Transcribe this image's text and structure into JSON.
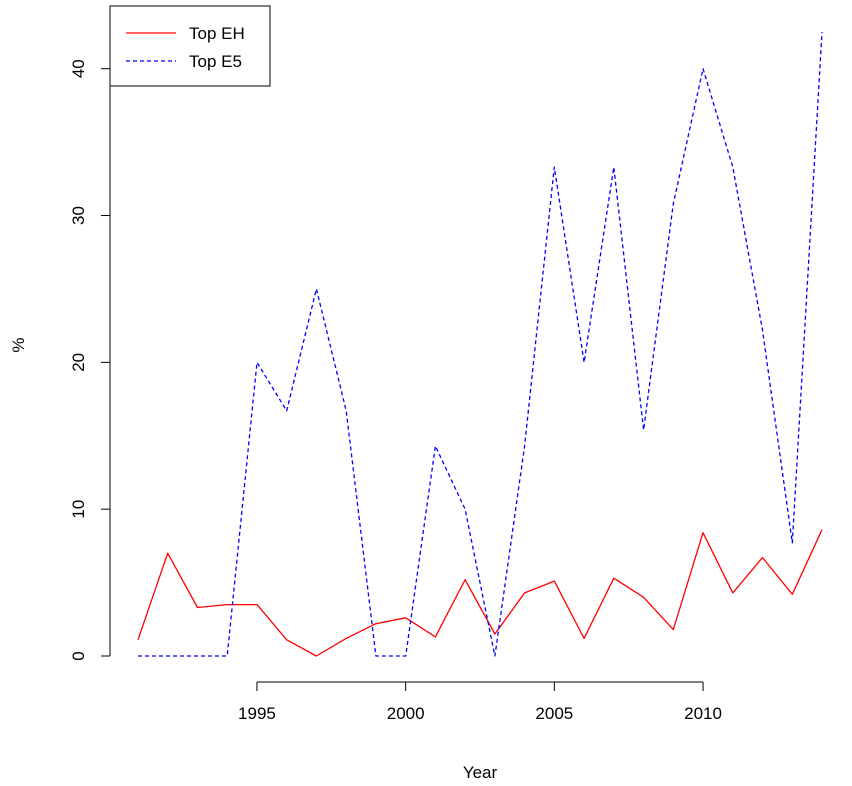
{
  "chart_data": {
    "type": "line",
    "title": "",
    "xlabel": "Year",
    "ylabel": "%",
    "xlim": [
      1991,
      2014
    ],
    "ylim": [
      0,
      42.5
    ],
    "x_ticks": [
      1995,
      2000,
      2005,
      2010
    ],
    "y_ticks": [
      0,
      10,
      20,
      30,
      40
    ],
    "grid": false,
    "box": false,
    "legend_position": "top-left",
    "x": [
      1991,
      1992,
      1993,
      1994,
      1995,
      1996,
      1997,
      1998,
      1999,
      2000,
      2001,
      2002,
      2003,
      2004,
      2005,
      2006,
      2007,
      2008,
      2009,
      2010,
      2011,
      2012,
      2013,
      2014
    ],
    "series": [
      {
        "name": "Top EH",
        "color": "#ff0000",
        "line_style": "solid",
        "values": [
          1.1,
          7.0,
          3.3,
          3.5,
          3.5,
          1.1,
          0.0,
          1.2,
          2.2,
          2.6,
          1.3,
          5.2,
          1.5,
          4.3,
          5.1,
          1.2,
          5.3,
          4.0,
          1.8,
          8.4,
          4.3,
          6.7,
          4.2,
          8.6
        ]
      },
      {
        "name": "Top E5",
        "color": "#0000ff",
        "line_style": "dashed",
        "values": [
          0.0,
          0.0,
          0.0,
          0.0,
          20.0,
          16.7,
          25.0,
          16.7,
          0.0,
          0.0,
          14.3,
          10.0,
          0.0,
          14.3,
          33.3,
          20.0,
          33.3,
          15.4,
          30.8,
          40.0,
          33.3,
          22.2,
          7.7,
          42.5
        ]
      }
    ]
  }
}
